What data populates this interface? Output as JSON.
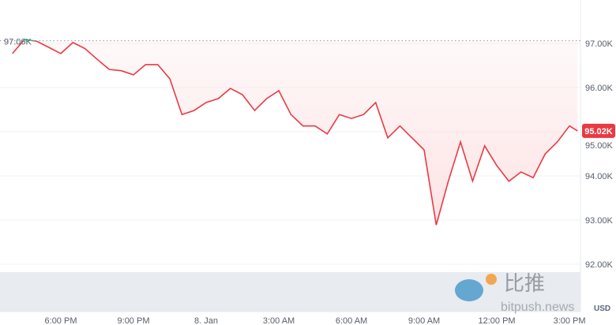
{
  "chart_data": {
    "type": "line",
    "currency_label": "USD",
    "reference_label": "97.06K",
    "reference_value": 97.06,
    "current_label": "95.02K",
    "current_value": 95.02,
    "ylim": [
      91.9,
      98.0
    ],
    "yticks": [
      {
        "value": 97,
        "label": "97.00K"
      },
      {
        "value": 96,
        "label": "96.00K"
      },
      {
        "value": 95,
        "label": "95.00K"
      },
      {
        "value": 94,
        "label": "94.00K"
      },
      {
        "value": 93,
        "label": "93.00K"
      },
      {
        "value": 92,
        "label": "92.00K"
      }
    ],
    "xticks": [
      {
        "time": "2025-01-07T18:00",
        "label": "6:00 PM"
      },
      {
        "time": "2025-01-07T21:00",
        "label": "9:00 PM"
      },
      {
        "time": "2025-01-08T00:00",
        "label": "8. Jan"
      },
      {
        "time": "2025-01-08T03:00",
        "label": "3:00 AM"
      },
      {
        "time": "2025-01-08T06:00",
        "label": "6:00 AM"
      },
      {
        "time": "2025-01-08T09:00",
        "label": "9:00 AM"
      },
      {
        "time": "2025-01-08T12:00",
        "label": "12:00 PM"
      },
      {
        "time": "2025-01-08T15:00",
        "label": "3:00 PM"
      }
    ],
    "colors": {
      "down": "#ea3943",
      "up": "#16c784",
      "fill": "#fde3e4",
      "volume": "#e8ebef"
    },
    "series": [
      [
        "2025-01-07T16:00",
        96.77
      ],
      [
        "2025-01-07T16:30",
        97.09
      ],
      [
        "2025-01-07T17:00",
        97.05
      ],
      [
        "2025-01-07T17:30",
        96.91
      ],
      [
        "2025-01-07T18:00",
        96.77
      ],
      [
        "2025-01-07T18:30",
        97.02
      ],
      [
        "2025-01-07T19:00",
        96.88
      ],
      [
        "2025-01-07T19:30",
        96.64
      ],
      [
        "2025-01-07T20:00",
        96.41
      ],
      [
        "2025-01-07T20:30",
        96.38
      ],
      [
        "2025-01-07T21:00",
        96.29
      ],
      [
        "2025-01-07T21:30",
        96.52
      ],
      [
        "2025-01-07T22:00",
        96.52
      ],
      [
        "2025-01-07T22:30",
        96.2
      ],
      [
        "2025-01-07T23:00",
        95.39
      ],
      [
        "2025-01-07T23:30",
        95.48
      ],
      [
        "2025-01-08T00:00",
        95.66
      ],
      [
        "2025-01-08T00:30",
        95.75
      ],
      [
        "2025-01-08T01:00",
        95.98
      ],
      [
        "2025-01-08T01:30",
        95.84
      ],
      [
        "2025-01-08T02:00",
        95.48
      ],
      [
        "2025-01-08T02:30",
        95.75
      ],
      [
        "2025-01-08T03:00",
        95.93
      ],
      [
        "2025-01-08T03:30",
        95.39
      ],
      [
        "2025-01-08T04:00",
        95.13
      ],
      [
        "2025-01-08T04:30",
        95.13
      ],
      [
        "2025-01-08T05:00",
        94.95
      ],
      [
        "2025-01-08T05:30",
        95.39
      ],
      [
        "2025-01-08T06:00",
        95.3
      ],
      [
        "2025-01-08T06:30",
        95.39
      ],
      [
        "2025-01-08T07:00",
        95.66
      ],
      [
        "2025-01-08T07:30",
        94.86
      ],
      [
        "2025-01-08T08:00",
        95.13
      ],
      [
        "2025-01-08T08:30",
        94.86
      ],
      [
        "2025-01-08T09:00",
        94.59
      ],
      [
        "2025-01-08T09:30",
        92.89
      ],
      [
        "2025-01-08T10:00",
        93.88
      ],
      [
        "2025-01-08T10:30",
        94.77
      ],
      [
        "2025-01-08T11:00",
        93.88
      ],
      [
        "2025-01-08T11:30",
        94.68
      ],
      [
        "2025-01-08T12:00",
        94.23
      ],
      [
        "2025-01-08T12:30",
        93.88
      ],
      [
        "2025-01-08T13:00",
        94.09
      ],
      [
        "2025-01-08T13:30",
        93.96
      ],
      [
        "2025-01-08T14:00",
        94.5
      ],
      [
        "2025-01-08T14:30",
        94.77
      ],
      [
        "2025-01-08T15:00",
        95.13
      ],
      [
        "2025-01-08T15:20",
        95.02
      ]
    ]
  },
  "watermark": {
    "text_cn": "比推",
    "text_en": "bitpush.news"
  }
}
